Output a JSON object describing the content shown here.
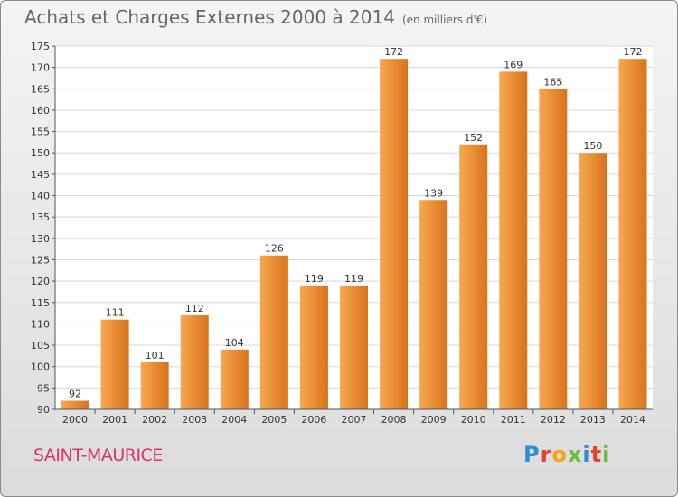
{
  "header": {
    "title": "Achats et Charges Externes 2000 à 2014",
    "subtitle": "(en milliers d'€)"
  },
  "footer": {
    "town": "SAINT-MAURICE",
    "logo_letters": [
      "P",
      "r",
      "o",
      "x",
      "i",
      "t",
      "i"
    ],
    "logo_colors": [
      "#2a8fd4",
      "#e8412f",
      "#f2a51c",
      "#6dbb3a",
      "#2a8fd4",
      "#e8412f",
      "#6dbb3a"
    ]
  },
  "chart_data": {
    "type": "bar",
    "title": "Achats et Charges Externes 2000 à 2014",
    "subtitle": "(en milliers d'€)",
    "categories": [
      "2000",
      "2001",
      "2002",
      "2003",
      "2004",
      "2005",
      "2006",
      "2007",
      "2008",
      "2009",
      "2010",
      "2011",
      "2012",
      "2013",
      "2014"
    ],
    "values": [
      92,
      111,
      101,
      112,
      104,
      126,
      119,
      119,
      172,
      139,
      152,
      169,
      165,
      150,
      172
    ],
    "ylim": [
      90,
      175
    ],
    "yticks": [
      90,
      95,
      100,
      105,
      110,
      115,
      120,
      125,
      130,
      135,
      140,
      145,
      150,
      155,
      160,
      165,
      170,
      175
    ],
    "grid": true,
    "bar_color_light": "#f7a850",
    "bar_color_dark": "#d9731c"
  }
}
